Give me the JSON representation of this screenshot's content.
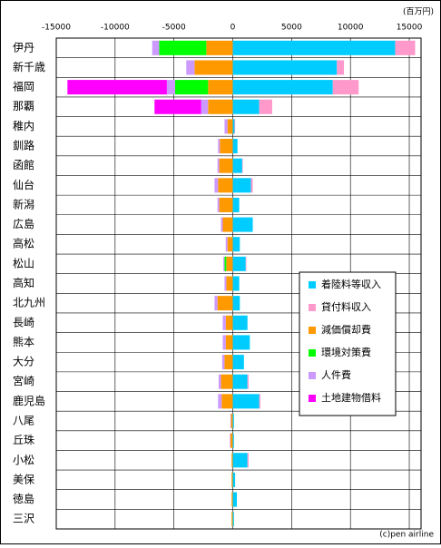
{
  "chart_data": {
    "type": "bar",
    "orientation": "horizontal",
    "stacked": true,
    "unit_label": "(百万円)",
    "footer": "(c)pen airline",
    "categories": [
      "伊丹",
      "新千歳",
      "福岡",
      "那覇",
      "稚内",
      "釧路",
      "函館",
      "仙台",
      "新潟",
      "広島",
      "高松",
      "松山",
      "高知",
      "北九州",
      "長崎",
      "熊本",
      "大分",
      "宮崎",
      "鹿児島",
      "八尾",
      "丘珠",
      "小松",
      "美保",
      "徳島",
      "三沢"
    ],
    "xlim": [
      -15000,
      16000
    ],
    "xticks": [
      -15000,
      -10000,
      -5000,
      0,
      5000,
      10000,
      15000
    ],
    "grid": true,
    "legend": "center right",
    "series": [
      {
        "name": "着陸料等収入",
        "color": "#00ccff",
        "values": [
          13800,
          8850,
          8500,
          2250,
          150,
          400,
          800,
          1550,
          550,
          1700,
          600,
          1100,
          550,
          600,
          1250,
          1450,
          950,
          1250,
          2250,
          100,
          100,
          1250,
          200,
          350,
          100
        ]
      },
      {
        "name": "貸付料収入",
        "color": "#ff99cc",
        "values": [
          1700,
          600,
          2200,
          1100,
          50,
          0,
          50,
          150,
          0,
          0,
          0,
          50,
          0,
          0,
          0,
          0,
          0,
          100,
          100,
          0,
          0,
          100,
          0,
          0,
          0
        ]
      },
      {
        "name": "減価償却費",
        "color": "#ff9900",
        "values": [
          -2250,
          -3250,
          -2100,
          -2100,
          -450,
          -1100,
          -1150,
          -1250,
          -1150,
          -850,
          -450,
          -550,
          -550,
          -1300,
          -600,
          -600,
          -700,
          -1000,
          -950,
          -150,
          -200,
          -100,
          -100,
          -100,
          -100
        ]
      },
      {
        "name": "環境対策費",
        "color": "#00ff00",
        "values": [
          -4000,
          0,
          -2800,
          0,
          0,
          0,
          0,
          0,
          0,
          0,
          0,
          -150,
          0,
          0,
          0,
          0,
          0,
          0,
          0,
          0,
          0,
          0,
          0,
          0,
          0
        ]
      },
      {
        "name": "人件費",
        "color": "#cc99ff",
        "values": [
          -600,
          -700,
          -700,
          -600,
          -250,
          -150,
          -150,
          -300,
          -150,
          -150,
          -150,
          -100,
          -150,
          -250,
          -250,
          -250,
          -200,
          -200,
          -300,
          -50,
          -50,
          0,
          0,
          0,
          0
        ]
      },
      {
        "name": "土地建物借料",
        "color": "#ff00ff",
        "values": [
          0,
          0,
          -8450,
          -3950,
          0,
          0,
          0,
          0,
          0,
          0,
          0,
          0,
          0,
          0,
          0,
          0,
          0,
          0,
          0,
          0,
          0,
          0,
          0,
          0,
          0
        ]
      }
    ]
  }
}
